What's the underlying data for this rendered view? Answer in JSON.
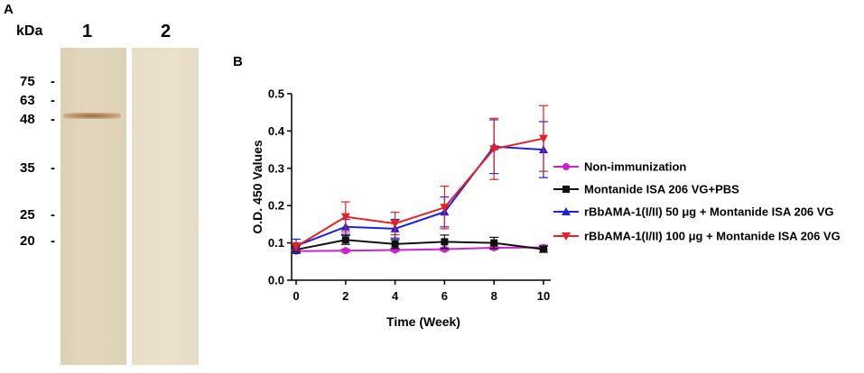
{
  "panel_a": {
    "label": "A",
    "unit_label": "kDa",
    "lanes": [
      "1",
      "2"
    ],
    "markers": [
      "75",
      "63",
      "48",
      "35",
      "25",
      "20"
    ],
    "marker_dash": "-"
  },
  "panel_b": {
    "label": "B"
  },
  "chart_data": {
    "type": "line",
    "title": "",
    "xlabel": "Time (Week)",
    "ylabel": "O.D. 450 Values",
    "x": [
      0,
      2,
      4,
      6,
      8,
      10
    ],
    "xlim": [
      0,
      10
    ],
    "ylim": [
      0,
      0.5
    ],
    "xticks": [
      "0",
      "2",
      "4",
      "6",
      "8",
      "10"
    ],
    "yticks": [
      "0.0",
      "0.1",
      "0.2",
      "0.3",
      "0.4",
      "0.5"
    ],
    "legend_position": "right",
    "series": [
      {
        "name": "Non-immunization",
        "color": "#cc22cc",
        "marker": "circle",
        "values": [
          0.078,
          0.079,
          0.081,
          0.083,
          0.087,
          0.088
        ],
        "errors": [
          0.004,
          0.004,
          0.004,
          0.004,
          0.005,
          0.006
        ]
      },
      {
        "name": "Montanide ISA 206 VG+PBS",
        "color": "#111111",
        "marker": "square",
        "values": [
          0.082,
          0.108,
          0.097,
          0.103,
          0.1,
          0.083
        ],
        "errors": [
          0.01,
          0.012,
          0.012,
          0.018,
          0.015,
          0.008
        ]
      },
      {
        "name": "rBbAMA-1(I/II) 50 μg + Montanide ISA 206 VG",
        "color": "#1f1fe6",
        "marker": "triangle-up",
        "values": [
          0.092,
          0.143,
          0.138,
          0.183,
          0.358,
          0.35
        ],
        "errors": [
          0.018,
          0.02,
          0.025,
          0.04,
          0.072,
          0.075
        ]
      },
      {
        "name": "rBbAMA-1(I/II) 100 μg + Montanide ISA 206 VG",
        "color": "#e82020",
        "marker": "triangle-down",
        "values": [
          0.09,
          0.17,
          0.152,
          0.195,
          0.352,
          0.38
        ],
        "errors": [
          0.01,
          0.04,
          0.03,
          0.057,
          0.082,
          0.088
        ]
      }
    ]
  }
}
